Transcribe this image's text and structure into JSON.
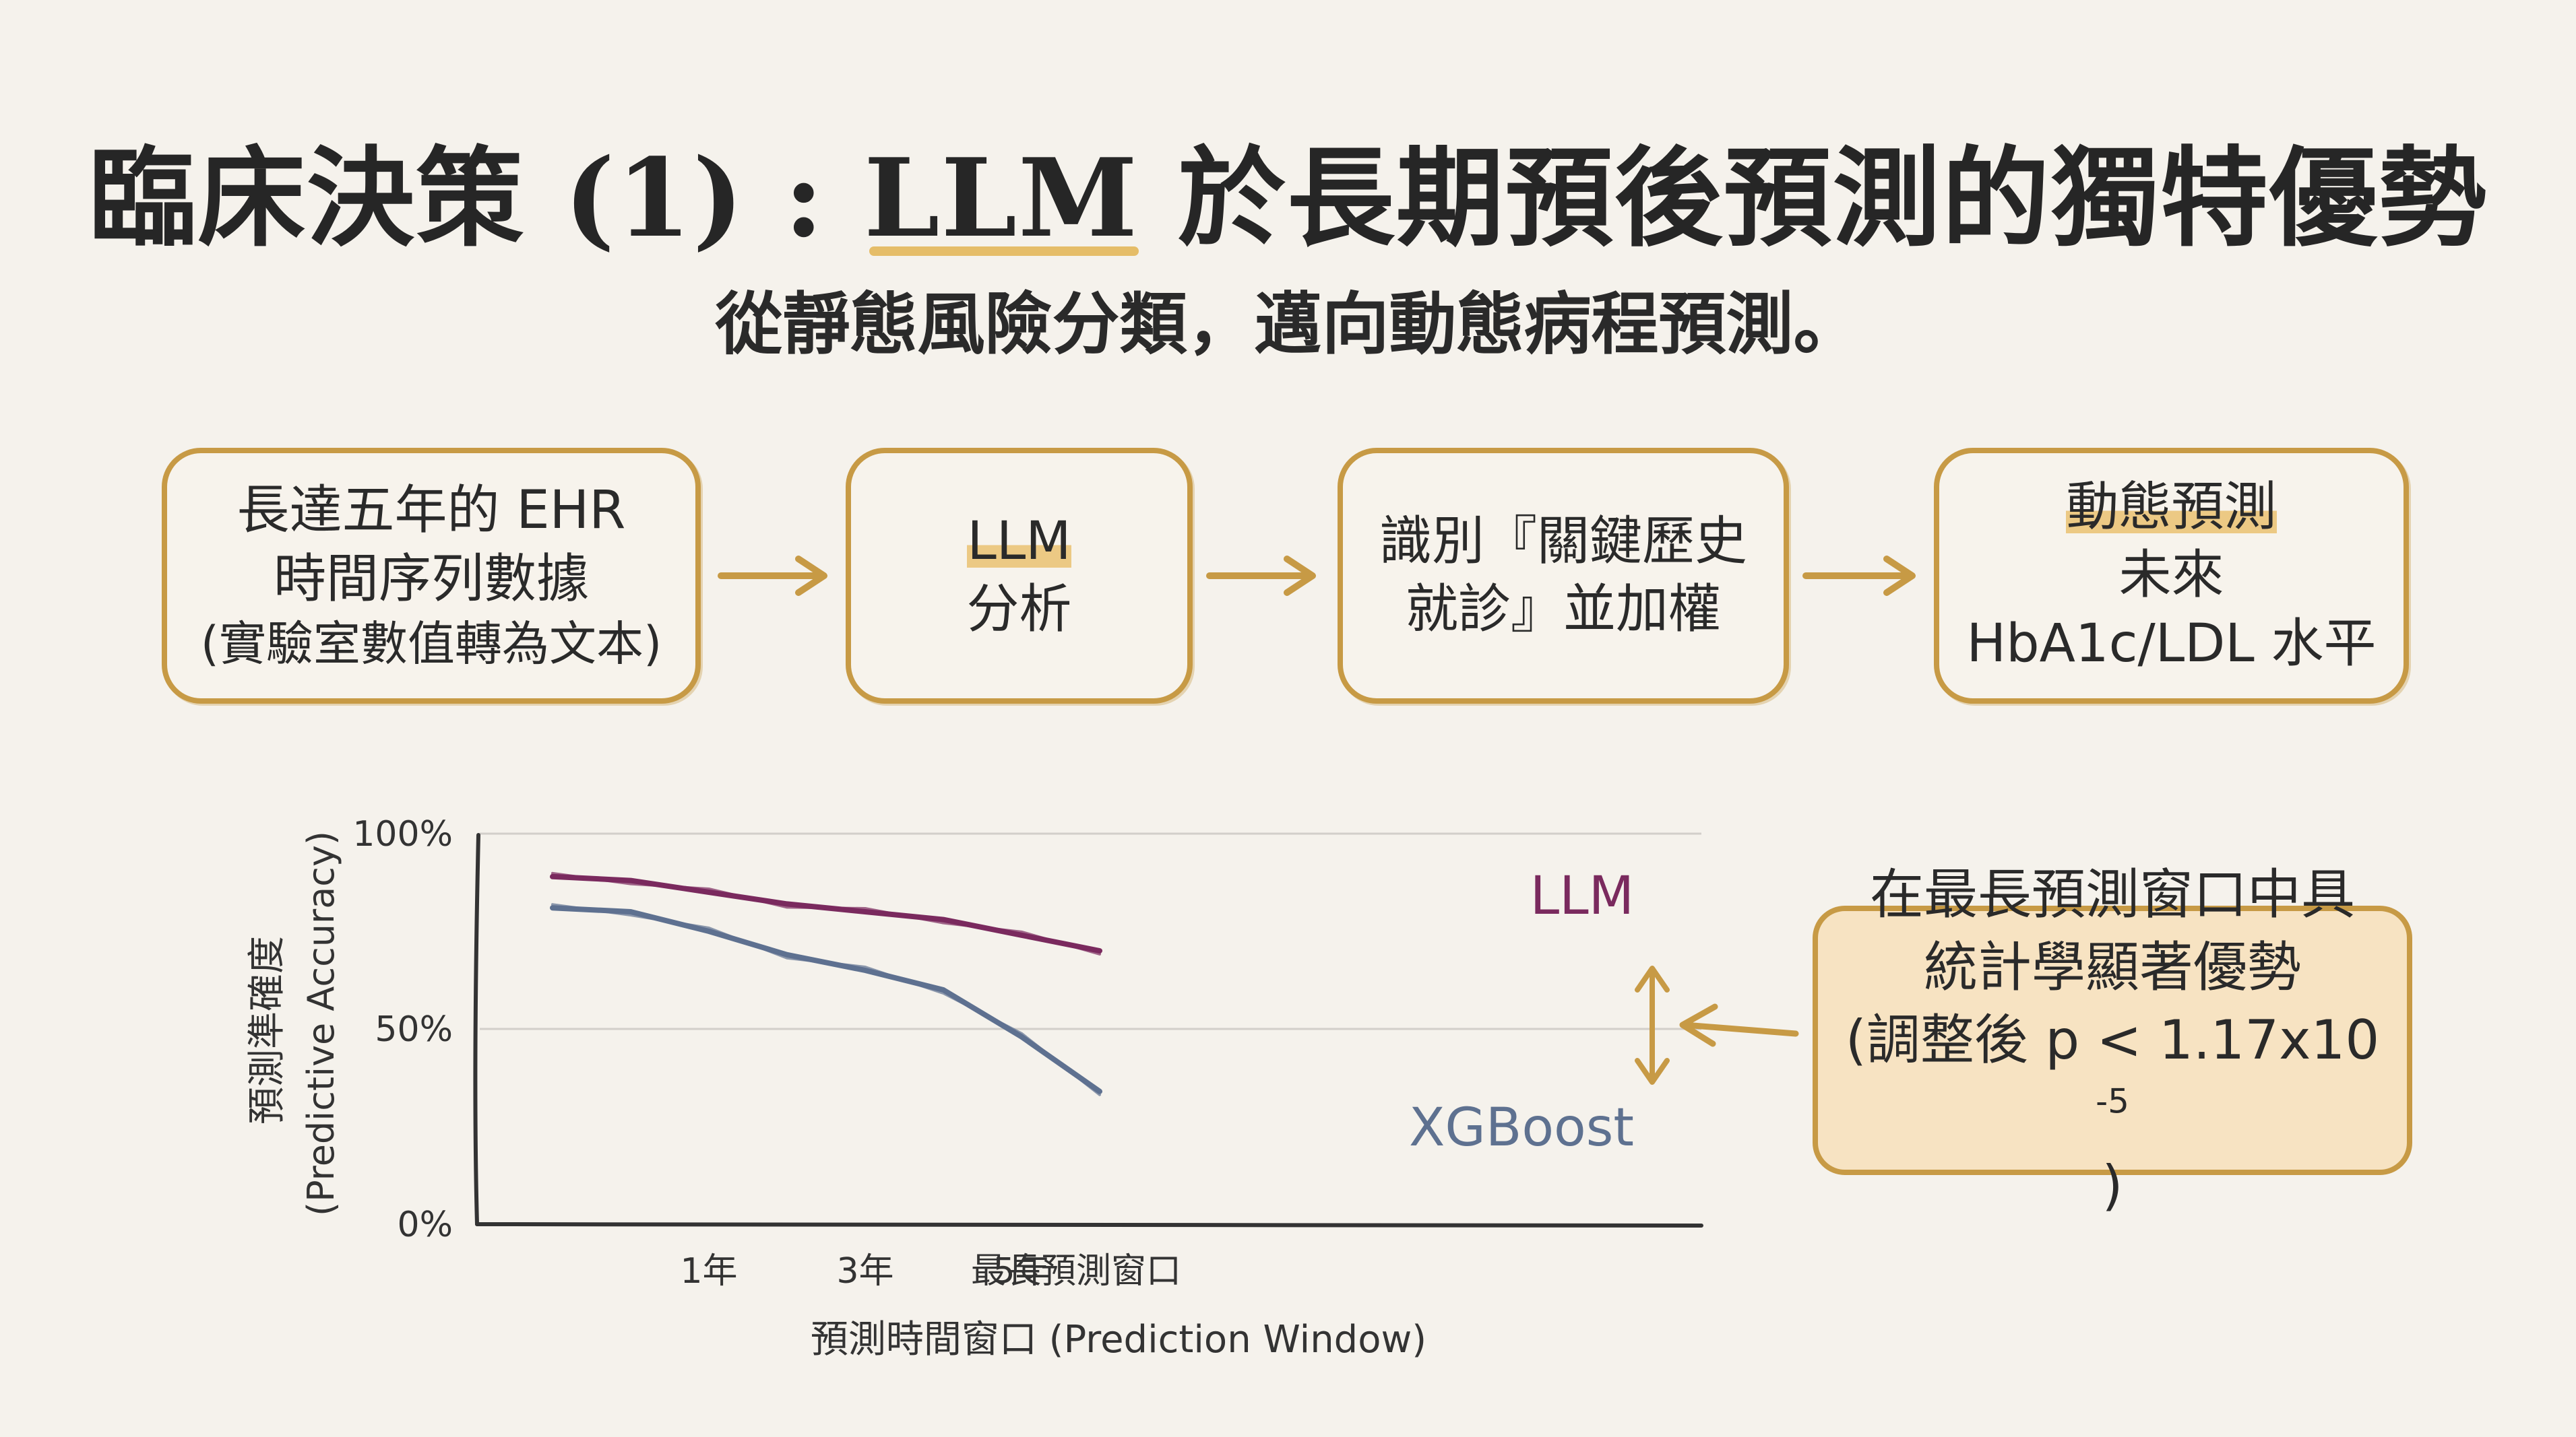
{
  "title": {
    "prefix": "臨床決策 (1) : ",
    "highlight": "LLM",
    "suffix": " 於長期預後預測的獨特優勢"
  },
  "subtitle": "從靜態風險分類，邁向動態病程預測。",
  "flow": {
    "step1": {
      "line1": "長達五年的 EHR",
      "line2": "時間序列數據",
      "line3": "(實驗室數值轉為文本)"
    },
    "step2": {
      "label": "LLM",
      "suffix": " 分析"
    },
    "step3": {
      "line1": "識別『關鍵歷史",
      "line2": "就診』並加權"
    },
    "step4": {
      "line1a": "動態預測",
      "line1b": "未來",
      "line2": "HbA1c/LDL 水平"
    }
  },
  "chart_data": {
    "type": "line",
    "title": "",
    "xlabel": "預測時間窗口 (Prediction Window)",
    "ylabel_zh": "預測準確度",
    "ylabel_en": "(Predictive Accuracy)",
    "categories": [
      "1年",
      "3年",
      "5年",
      "最長預測窗口"
    ],
    "x": [
      0,
      0.5,
      1,
      1.5,
      2,
      2.5,
      3,
      3.5
    ],
    "yticks": [
      "0%",
      "50%",
      "100%"
    ],
    "ylim": [
      0,
      100
    ],
    "series": [
      {
        "name": "LLM",
        "color": "#7a2a5e",
        "values": [
          89,
          88,
          85,
          82,
          80,
          78,
          74,
          70
        ]
      },
      {
        "name": "XGBoost",
        "color": "#5e7190",
        "values": [
          81,
          80,
          75,
          69,
          65,
          60,
          48,
          34
        ]
      }
    ]
  },
  "callout": {
    "line1": "在最長預測窗口中具",
    "line2": "統計學顯著優勢",
    "line3": "(調整後 p < 1.17x10",
    "sup": "-5",
    "line3_end": ")"
  },
  "colors": {
    "accent": "#c79a45",
    "llm": "#7a2a5e",
    "xgboost": "#5e7190",
    "background": "#f5f2ec"
  }
}
